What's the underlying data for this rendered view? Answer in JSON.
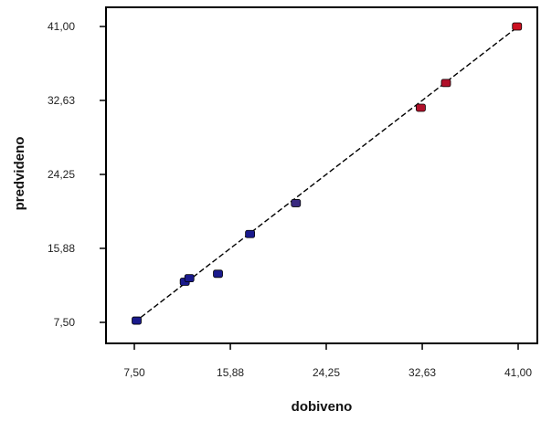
{
  "chart_data": {
    "type": "scatter",
    "title": "",
    "xlabel": "dobiveno",
    "ylabel": "predvideno",
    "xlim": [
      7.5,
      41.0
    ],
    "ylim": [
      7.5,
      41.0
    ],
    "x_ticks": [
      7.5,
      15.88,
      24.25,
      32.63,
      41.0
    ],
    "y_ticks": [
      7.5,
      15.88,
      24.25,
      32.63,
      41.0
    ],
    "x_tick_labels": [
      "7,50",
      "15,88",
      "24,25",
      "32,63",
      "41,00"
    ],
    "y_tick_labels": [
      "7,50",
      "15,88",
      "24,25",
      "32,63",
      "41,00"
    ],
    "grid": false,
    "legend": "none",
    "points": [
      {
        "x": 7.7,
        "y": 7.7,
        "color": "#1a1a8c"
      },
      {
        "x": 11.9,
        "y": 12.1,
        "color": "#1a1a8c"
      },
      {
        "x": 12.3,
        "y": 12.5,
        "color": "#1a1a8c"
      },
      {
        "x": 14.8,
        "y": 13.0,
        "color": "#1a1a8c"
      },
      {
        "x": 17.6,
        "y": 17.5,
        "color": "#1a1a8c"
      },
      {
        "x": 21.6,
        "y": 21.0,
        "color": "#3a2a80"
      },
      {
        "x": 32.5,
        "y": 31.8,
        "color": "#b0102a"
      },
      {
        "x": 34.7,
        "y": 34.6,
        "color": "#b0102a"
      },
      {
        "x": 40.9,
        "y": 41.0,
        "color": "#cc1020"
      }
    ],
    "fit_line": {
      "x": [
        7.5,
        41.0
      ],
      "y": [
        7.5,
        41.0
      ],
      "style": "dashed",
      "color": "#000000"
    }
  }
}
